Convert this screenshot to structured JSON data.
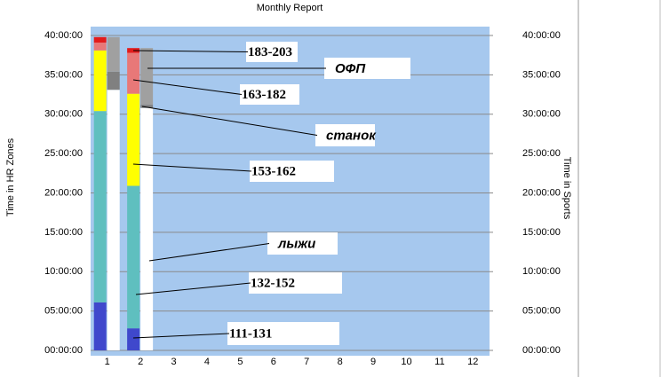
{
  "chart_data": {
    "type": "bar",
    "title": "Monthly Report",
    "y_label": "Time in HR Zones",
    "y2_label": "Time in Sports",
    "categories": [
      "1",
      "2",
      "3",
      "4",
      "5",
      "6",
      "7",
      "8",
      "9",
      "10",
      "11",
      "12"
    ],
    "stacked": true,
    "grid": true,
    "ylim": [
      0,
      40
    ],
    "yticks": [
      {
        "value": 0,
        "label": "00:00:00"
      },
      {
        "value": 5,
        "label": "05:00:00"
      },
      {
        "value": 10,
        "label": "10:00:00"
      },
      {
        "value": 15,
        "label": "15:00:00"
      },
      {
        "value": 20,
        "label": "20:00:00"
      },
      {
        "value": 25,
        "label": "25:00:00"
      },
      {
        "value": 30,
        "label": "30:00:00"
      },
      {
        "value": 35,
        "label": "35:00:00"
      },
      {
        "value": 40,
        "label": "40:00:00"
      }
    ],
    "y2lim": [
      0,
      40
    ],
    "y2ticks": [
      {
        "value": 0,
        "label": "00:00:00"
      },
      {
        "value": 5,
        "label": "05:00:00"
      },
      {
        "value": 10,
        "label": "10:00:00"
      },
      {
        "value": 15,
        "label": "15:00:00"
      },
      {
        "value": 20,
        "label": "20:00:00"
      },
      {
        "value": 25,
        "label": "25:00:00"
      },
      {
        "value": 30,
        "label": "30:00:00"
      },
      {
        "value": 35,
        "label": "35:00:00"
      },
      {
        "value": 40,
        "label": "40:00:00"
      }
    ],
    "series": [
      {
        "name": "111-131",
        "color": "#3f48cc",
        "values": [
          6.1,
          2.8,
          null,
          null,
          null,
          null,
          null,
          null,
          null,
          null,
          null,
          null
        ]
      },
      {
        "name": "132-152",
        "color": "#5fbfbf",
        "values": [
          24.3,
          18.1,
          null,
          null,
          null,
          null,
          null,
          null,
          null,
          null,
          null,
          null
        ]
      },
      {
        "name": "153-162",
        "color": "#ffff00",
        "values": [
          7.7,
          11.7,
          null,
          null,
          null,
          null,
          null,
          null,
          null,
          null,
          null,
          null
        ]
      },
      {
        "name": "163-182",
        "color": "#e87878",
        "values": [
          1.0,
          5.2,
          null,
          null,
          null,
          null,
          null,
          null,
          null,
          null,
          null,
          null
        ]
      },
      {
        "name": "183-203",
        "color": "#e31b1b",
        "values": [
          0.7,
          0.6,
          null,
          null,
          null,
          null,
          null,
          null,
          null,
          null,
          null,
          null
        ]
      },
      {
        "name": "лыжи",
        "color": "#ffffff",
        "axis": "y2",
        "values": [
          33.1,
          30.8,
          null,
          null,
          null,
          null,
          null,
          null,
          null,
          null,
          null,
          null
        ]
      },
      {
        "name": "станок",
        "color": "#808080",
        "axis": "y2",
        "values": [
          2.3,
          0.4,
          null,
          null,
          null,
          null,
          null,
          null,
          null,
          null,
          null,
          null
        ]
      },
      {
        "name": "ОФП",
        "color": "#a0a0a0",
        "axis": "y2",
        "values": [
          4.4,
          7.2,
          null,
          null,
          null,
          null,
          null,
          null,
          null,
          null,
          null,
          null
        ]
      }
    ]
  }
}
